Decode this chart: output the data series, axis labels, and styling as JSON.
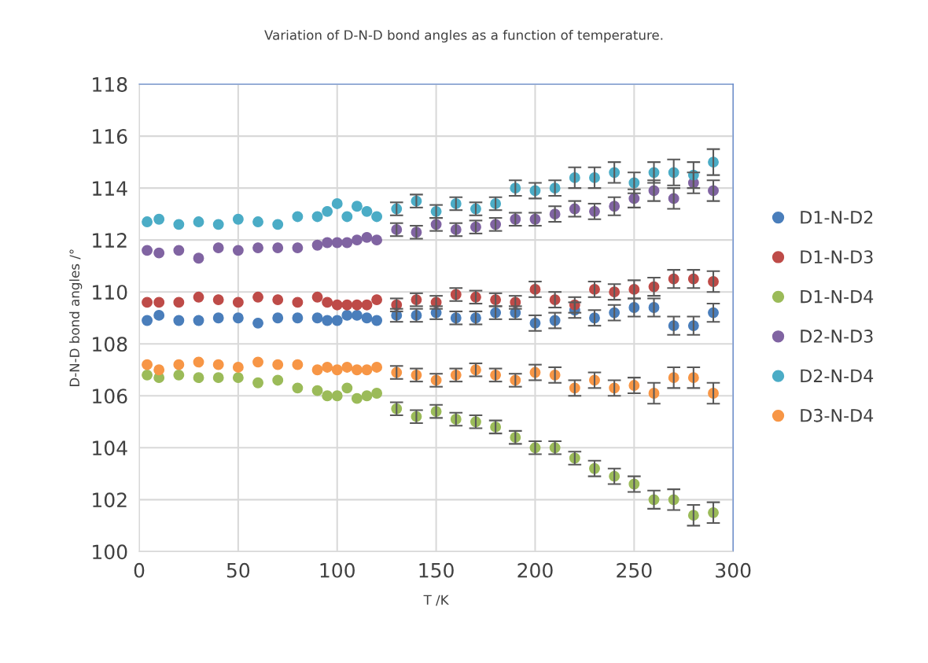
{
  "chart_data": {
    "type": "scatter",
    "title": "Variation of D-N-D bond angles as a function of temperature.",
    "xlabel": "T /K",
    "ylabel": "D-N-D bond angles /°",
    "x": [
      4,
      10,
      20,
      30,
      40,
      50,
      60,
      70,
      80,
      90,
      95,
      100,
      105,
      110,
      115,
      120,
      130,
      140,
      150,
      160,
      170,
      180,
      190,
      200,
      210,
      220,
      230,
      240,
      250,
      260,
      270,
      280,
      290
    ],
    "xlim": [
      0,
      300
    ],
    "xticks": [
      0,
      50,
      100,
      150,
      200,
      250,
      300
    ],
    "ylim": [
      100,
      118
    ],
    "yticks": [
      100,
      102,
      104,
      106,
      108,
      110,
      112,
      114,
      116,
      118
    ],
    "grid": true,
    "legend": "right",
    "marker": "circle",
    "series": [
      {
        "name": "D1-N-D2",
        "color": "#4a7ebb",
        "values": [
          108.9,
          109.1,
          108.9,
          108.9,
          109.0,
          109.0,
          108.8,
          109.0,
          109.0,
          109.0,
          108.9,
          108.9,
          109.1,
          109.1,
          109.0,
          108.9,
          109.1,
          109.1,
          109.2,
          109.0,
          109.0,
          109.2,
          109.2,
          108.8,
          108.9,
          109.3,
          109.0,
          109.2,
          109.4,
          109.4,
          108.7,
          108.7,
          109.2
        ],
        "errors": [
          null,
          null,
          null,
          null,
          null,
          null,
          null,
          null,
          null,
          null,
          null,
          null,
          null,
          null,
          null,
          null,
          0.25,
          0.25,
          0.25,
          0.25,
          0.25,
          0.25,
          0.25,
          0.3,
          0.3,
          0.3,
          0.3,
          0.3,
          0.35,
          0.35,
          0.35,
          0.35,
          0.35
        ]
      },
      {
        "name": "D1-N-D3",
        "color": "#be4b48",
        "values": [
          109.6,
          109.6,
          109.6,
          109.8,
          109.7,
          109.6,
          109.8,
          109.7,
          109.6,
          109.8,
          109.6,
          109.5,
          109.5,
          109.5,
          109.5,
          109.7,
          109.5,
          109.7,
          109.6,
          109.9,
          109.8,
          109.7,
          109.6,
          110.1,
          109.7,
          109.5,
          110.1,
          110.0,
          110.1,
          110.2,
          110.5,
          110.5,
          110.4
        ],
        "errors": [
          null,
          null,
          null,
          null,
          null,
          null,
          null,
          null,
          null,
          null,
          null,
          null,
          null,
          null,
          null,
          null,
          0.25,
          0.25,
          0.25,
          0.25,
          0.25,
          0.25,
          0.25,
          0.3,
          0.3,
          0.3,
          0.3,
          0.3,
          0.35,
          0.35,
          0.35,
          0.35,
          0.4
        ]
      },
      {
        "name": "D1-N-D4",
        "color": "#9bbb59",
        "values": [
          106.8,
          106.7,
          106.8,
          106.7,
          106.7,
          106.7,
          106.5,
          106.6,
          106.3,
          106.2,
          106.0,
          106.0,
          106.3,
          105.9,
          106.0,
          106.1,
          105.5,
          105.2,
          105.4,
          105.1,
          105.0,
          104.8,
          104.4,
          104.0,
          104.0,
          103.6,
          103.2,
          102.9,
          102.6,
          102.0,
          102.0,
          101.4,
          101.5
        ],
        "errors": [
          null,
          null,
          null,
          null,
          null,
          null,
          null,
          null,
          null,
          null,
          null,
          null,
          null,
          null,
          null,
          null,
          0.25,
          0.25,
          0.25,
          0.25,
          0.25,
          0.25,
          0.25,
          0.25,
          0.25,
          0.25,
          0.3,
          0.3,
          0.3,
          0.35,
          0.4,
          0.4,
          0.4
        ]
      },
      {
        "name": "D2-N-D3",
        "color": "#8064a2",
        "values": [
          111.6,
          111.5,
          111.6,
          111.3,
          111.7,
          111.6,
          111.7,
          111.7,
          111.7,
          111.8,
          111.9,
          111.9,
          111.9,
          112.0,
          112.1,
          112.0,
          112.4,
          112.3,
          112.6,
          112.4,
          112.5,
          112.6,
          112.8,
          112.8,
          113.0,
          113.2,
          113.1,
          113.3,
          113.6,
          113.9,
          113.6,
          114.2,
          113.9
        ],
        "errors": [
          null,
          null,
          null,
          null,
          null,
          null,
          null,
          null,
          null,
          null,
          null,
          null,
          null,
          null,
          null,
          null,
          0.25,
          0.25,
          0.25,
          0.25,
          0.25,
          0.25,
          0.25,
          0.25,
          0.3,
          0.3,
          0.3,
          0.35,
          0.35,
          0.4,
          0.4,
          0.4,
          0.4
        ]
      },
      {
        "name": "D2-N-D4",
        "color": "#4bacc6",
        "values": [
          112.7,
          112.8,
          112.6,
          112.7,
          112.6,
          112.8,
          112.7,
          112.6,
          112.9,
          112.9,
          113.1,
          113.4,
          112.9,
          113.3,
          113.1,
          112.9,
          113.2,
          113.5,
          113.1,
          113.4,
          113.2,
          113.4,
          114.0,
          113.9,
          114.0,
          114.4,
          114.4,
          114.6,
          114.2,
          114.6,
          114.6,
          114.5,
          115.0
        ],
        "errors": [
          null,
          null,
          null,
          null,
          null,
          null,
          null,
          null,
          null,
          null,
          null,
          null,
          null,
          null,
          null,
          null,
          0.25,
          0.25,
          0.25,
          0.25,
          0.25,
          0.25,
          0.3,
          0.3,
          0.3,
          0.4,
          0.4,
          0.4,
          0.4,
          0.4,
          0.5,
          0.5,
          0.5
        ]
      },
      {
        "name": "D3-N-D4",
        "color": "#f79646",
        "values": [
          107.2,
          107.0,
          107.2,
          107.3,
          107.2,
          107.1,
          107.3,
          107.2,
          107.2,
          107.0,
          107.1,
          107.0,
          107.1,
          107.0,
          107.0,
          107.1,
          106.9,
          106.8,
          106.6,
          106.8,
          107.0,
          106.8,
          106.6,
          106.9,
          106.8,
          106.3,
          106.6,
          106.3,
          106.4,
          106.1,
          106.7,
          106.7,
          106.1
        ],
        "errors": [
          null,
          null,
          null,
          null,
          null,
          null,
          null,
          null,
          null,
          null,
          null,
          null,
          null,
          null,
          null,
          null,
          0.25,
          0.25,
          0.25,
          0.25,
          0.25,
          0.25,
          0.25,
          0.3,
          0.3,
          0.3,
          0.3,
          0.3,
          0.3,
          0.4,
          0.4,
          0.4,
          0.4
        ]
      }
    ]
  }
}
